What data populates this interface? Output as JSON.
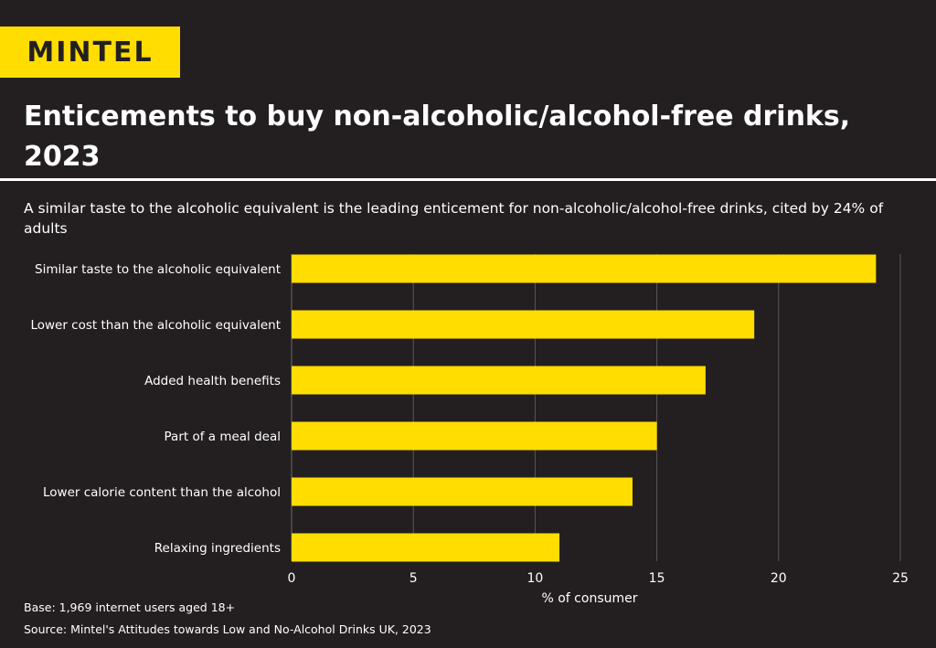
{
  "brand": {
    "logo_text": "MINTEL",
    "accent": "#ffdd00",
    "background": "#231f20"
  },
  "header": {
    "title": "Enticements to buy non-alcoholic/alcohol-free drinks, 2023",
    "subtitle": "A similar taste to the alcoholic equivalent is the leading enticement for non-alcoholic/alcohol-free drinks, cited by 24% of adults"
  },
  "chart_data": {
    "type": "bar",
    "orientation": "horizontal",
    "categories": [
      "Similar taste to the alcoholic equivalent",
      "Lower cost than the alcoholic equivalent",
      "Added health benefits",
      "Part of a meal deal",
      "Lower calorie content than the alcohol",
      "Relaxing ingredients"
    ],
    "values": [
      24,
      19,
      17,
      15,
      14,
      11
    ],
    "xlabel": "% of consumer",
    "xlim": [
      0,
      25
    ],
    "xticks": [
      0,
      5,
      10,
      15,
      20,
      25
    ],
    "grid": true,
    "bar_color": "#ffdd00"
  },
  "footer": {
    "base": "Base: 1,969 internet users aged 18+",
    "source": "Source: Mintel's Attitudes towards Low and No-Alcohol Drinks UK, 2023"
  }
}
